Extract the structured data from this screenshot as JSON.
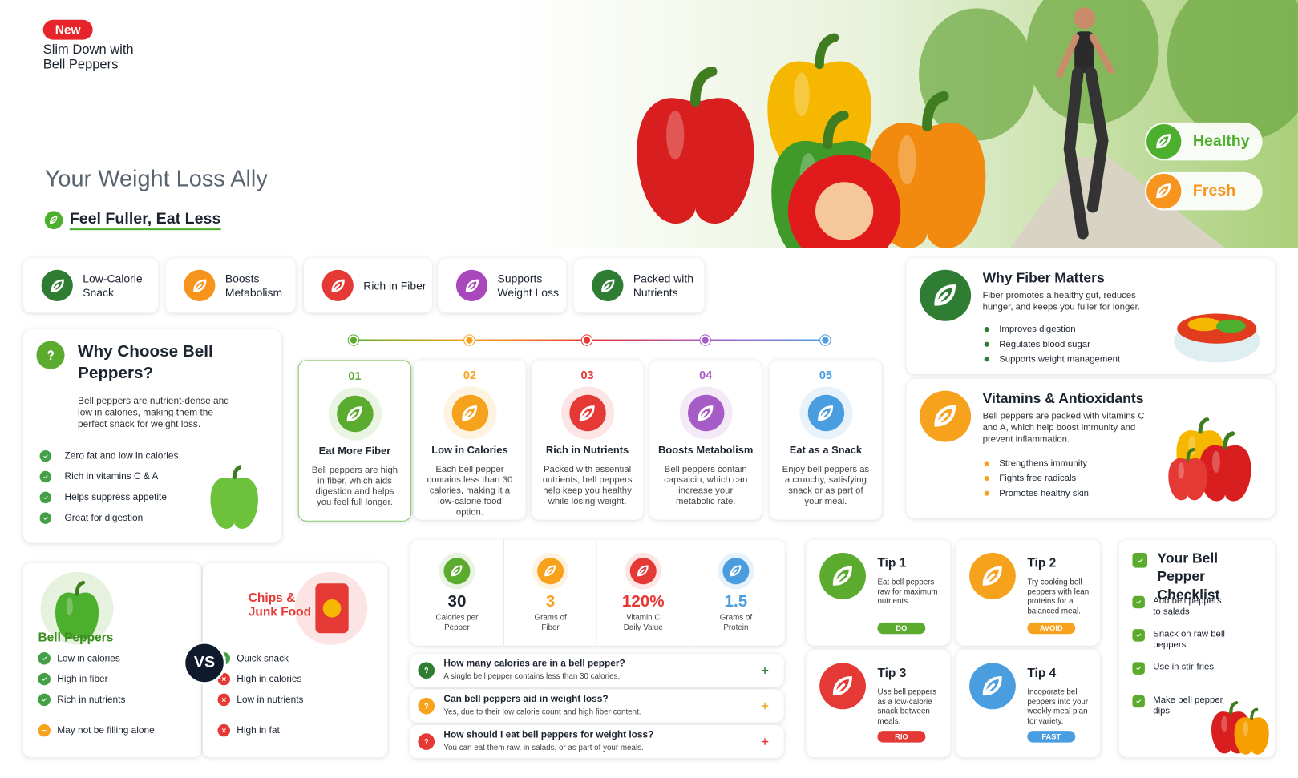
{
  "header": {
    "badge": "New",
    "title": [
      "Slim Down with",
      "Bell Peppers"
    ],
    "subtitle": "Your Weight Loss Ally",
    "tagline": "Feel Fuller, Eat Less"
  },
  "hero_tags": [
    {
      "label": "Healthy",
      "color": "#4caf2e"
    },
    {
      "label": "Fresh",
      "color": "#f7941d"
    }
  ],
  "features": [
    {
      "label": "Low-Calorie Snack",
      "color": "#2e7d32"
    },
    {
      "label": "Boosts Metabolism",
      "color": "#f7941d"
    },
    {
      "label": "Rich in Fiber",
      "color": "#e53935"
    },
    {
      "label": "Supports Weight Loss",
      "color": "#ab47bc"
    },
    {
      "label": "Packed with Nutrients",
      "color": "#2e7d32"
    }
  ],
  "why_choose": {
    "title": "Why Choose Bell Peppers?",
    "text": "Bell peppers are nutrient-dense and low in calories, making them the perfect snack for weight loss.",
    "items": [
      "Zero fat and low in calories",
      "Rich in vitamins C & A",
      "Helps suppress appetite",
      "Great for digestion"
    ]
  },
  "steps": [
    {
      "number": "01",
      "title": "Eat More Fiber",
      "text": "Bell peppers are high in fiber, which aids digestion and helps you feel full longer.",
      "color": "#5aab2e"
    },
    {
      "number": "02",
      "title": "Low in Calories",
      "text": "Each bell pepper contains less than 30 calories, making it a low-calorie food option.",
      "color": "#f7a21d"
    },
    {
      "number": "03",
      "title": "Rich in Nutrients",
      "text": "Packed with essential nutrients, bell peppers help keep you healthy while losing weight.",
      "color": "#e53935"
    },
    {
      "number": "04",
      "title": "Boosts Metabolism",
      "text": "Bell peppers contain capsaicin, which can increase your metabolic rate.",
      "color": "#a65cc6"
    },
    {
      "number": "05",
      "title": "Eat as a Snack",
      "text": "Enjoy bell peppers as a crunchy, satisfying snack or as part of your meal.",
      "color": "#4a9ee0"
    }
  ],
  "fiber": {
    "title": "Why Fiber Matters",
    "text": "Fiber promotes a healthy gut, reduces hunger, and keeps you fuller for longer.",
    "items": [
      "Improves digestion",
      "Regulates blood sugar",
      "Supports weight management"
    ]
  },
  "vitamins": {
    "title": "Vitamins & Antioxidants",
    "text": "Bell peppers are packed with vitamins C and A, which help boost immunity and prevent inflammation.",
    "items": [
      "Strengthens immunity",
      "Fights free radicals",
      "Promotes healthy skin"
    ]
  },
  "comparison": {
    "vs": "VS",
    "left": {
      "title": "Bell Peppers",
      "items": [
        {
          "text": "Low in calories",
          "status": "check"
        },
        {
          "text": "High in fiber",
          "status": "check"
        },
        {
          "text": "Rich in nutrients",
          "status": "check"
        },
        {
          "text": "May not be filling alone",
          "status": "minus"
        }
      ]
    },
    "right": {
      "title": "Chips & Junk Food",
      "items": [
        {
          "text": "Quick snack",
          "status": "check"
        },
        {
          "text": "High in calories",
          "status": "cross"
        },
        {
          "text": "Low in nutrients",
          "status": "cross"
        },
        {
          "text": "High in fat",
          "status": "cross"
        }
      ]
    }
  },
  "stats": [
    {
      "value": "30",
      "label": "Calories per Pepper",
      "color": "#5aab2e"
    },
    {
      "value": "3",
      "label": "Grams of Fiber",
      "color": "#f7a21d"
    },
    {
      "value": "120%",
      "label": "Vitamin C Daily Value",
      "color": "#e53935"
    },
    {
      "value": "1.5",
      "label": "Grams of Protein",
      "color": "#4a9ee0"
    }
  ],
  "faq": [
    {
      "question": "How many calories are in a bell pepper?",
      "answer": "A single bell pepper contains less than 30 calories.",
      "color": "#2e7d32"
    },
    {
      "question": "Can bell peppers aid in weight loss?",
      "answer": "Yes, due to their low calorie count and high fiber content.",
      "color": "#f7a21d"
    },
    {
      "question": "How should I eat bell peppers for weight loss?",
      "answer": "You can eat them raw, in salads, or as part of your meals.",
      "color": "#e53935"
    }
  ],
  "tips": [
    {
      "title": "Tip 1",
      "text": "Eat bell peppers raw for maximum nutrients.",
      "tag": "DO",
      "color": "#5aab2e"
    },
    {
      "title": "Tip 2",
      "text": "Try cooking bell peppers with lean proteins for a balanced meal.",
      "tag": "AVOID",
      "color": "#f7a21d"
    },
    {
      "title": "Tip 3",
      "text": "Use bell peppers as a low-calorie snack between meals.",
      "tag": "RIO",
      "color": "#e53935"
    },
    {
      "title": "Tip 4",
      "text": "Incoporate bell peppers into your weekly meal plan for variety.",
      "tag": "FAST",
      "color": "#4a9ee0"
    }
  ],
  "checklist": {
    "title": "Your Bell Pepper Checklist",
    "items": [
      "Add bell peppers to salads",
      "Snack on raw bell peppers",
      "Use in stir-fries",
      "Make bell pepper dips"
    ]
  }
}
